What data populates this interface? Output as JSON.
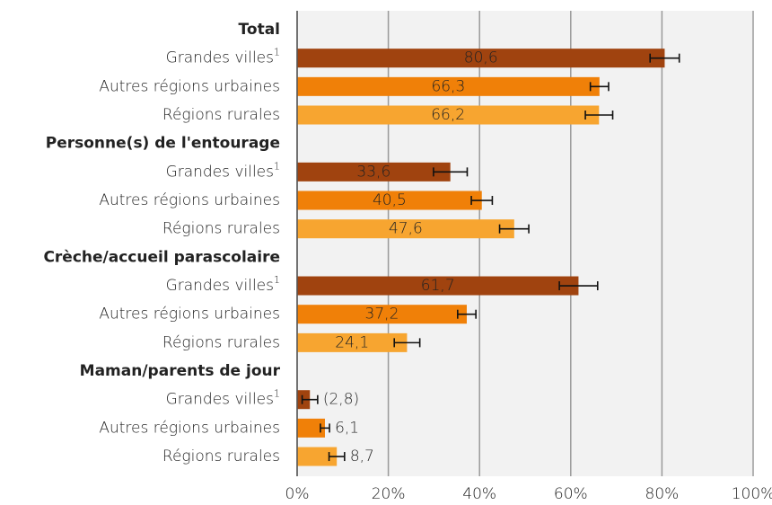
{
  "chart_data": {
    "type": "grouped-hbar",
    "categories": [
      {
        "label": "Grandes villes",
        "sup": "1",
        "color": "#a0430f",
        "label_color": "#ffffff"
      },
      {
        "label": "Autres régions urbaines",
        "color": "#f08008",
        "label_color": "#222222"
      },
      {
        "label": "Régions rurales",
        "color": "#f7a530",
        "label_color": "#222222"
      }
    ],
    "groups": [
      {
        "name": "Total",
        "values": [
          80.6,
          66.3,
          66.2
        ],
        "errors": [
          3.2,
          2.0,
          3.0
        ],
        "value_labels": [
          "80,6",
          "66,3",
          "66,2"
        ]
      },
      {
        "name": "Personne(s) de l'entourage",
        "values": [
          33.6,
          40.5,
          47.6
        ],
        "errors": [
          3.7,
          2.3,
          3.2
        ],
        "value_labels": [
          "33,6",
          "40,5",
          "47,6"
        ]
      },
      {
        "name": "Crèche/accueil parascolaire",
        "values": [
          61.7,
          37.2,
          24.1
        ],
        "errors": [
          4.2,
          2.0,
          2.8
        ],
        "value_labels": [
          "61,7",
          "37,2",
          "24,1"
        ]
      },
      {
        "name": "Maman/parents de jour",
        "values": [
          2.8,
          6.1,
          8.7
        ],
        "errors": [
          1.7,
          1.0,
          1.7
        ],
        "value_labels": [
          "(2,8)",
          "6,1",
          "8,7"
        ]
      }
    ],
    "xlim": [
      0,
      100
    ],
    "xticks": [
      {
        "value": 0,
        "label": "0%"
      },
      {
        "value": 20,
        "label": "20%"
      },
      {
        "value": 40,
        "label": "40%"
      },
      {
        "value": 60,
        "label": "60%"
      },
      {
        "value": 80,
        "label": "80%"
      },
      {
        "value": 100,
        "label": "100%"
      }
    ],
    "grid": true
  }
}
